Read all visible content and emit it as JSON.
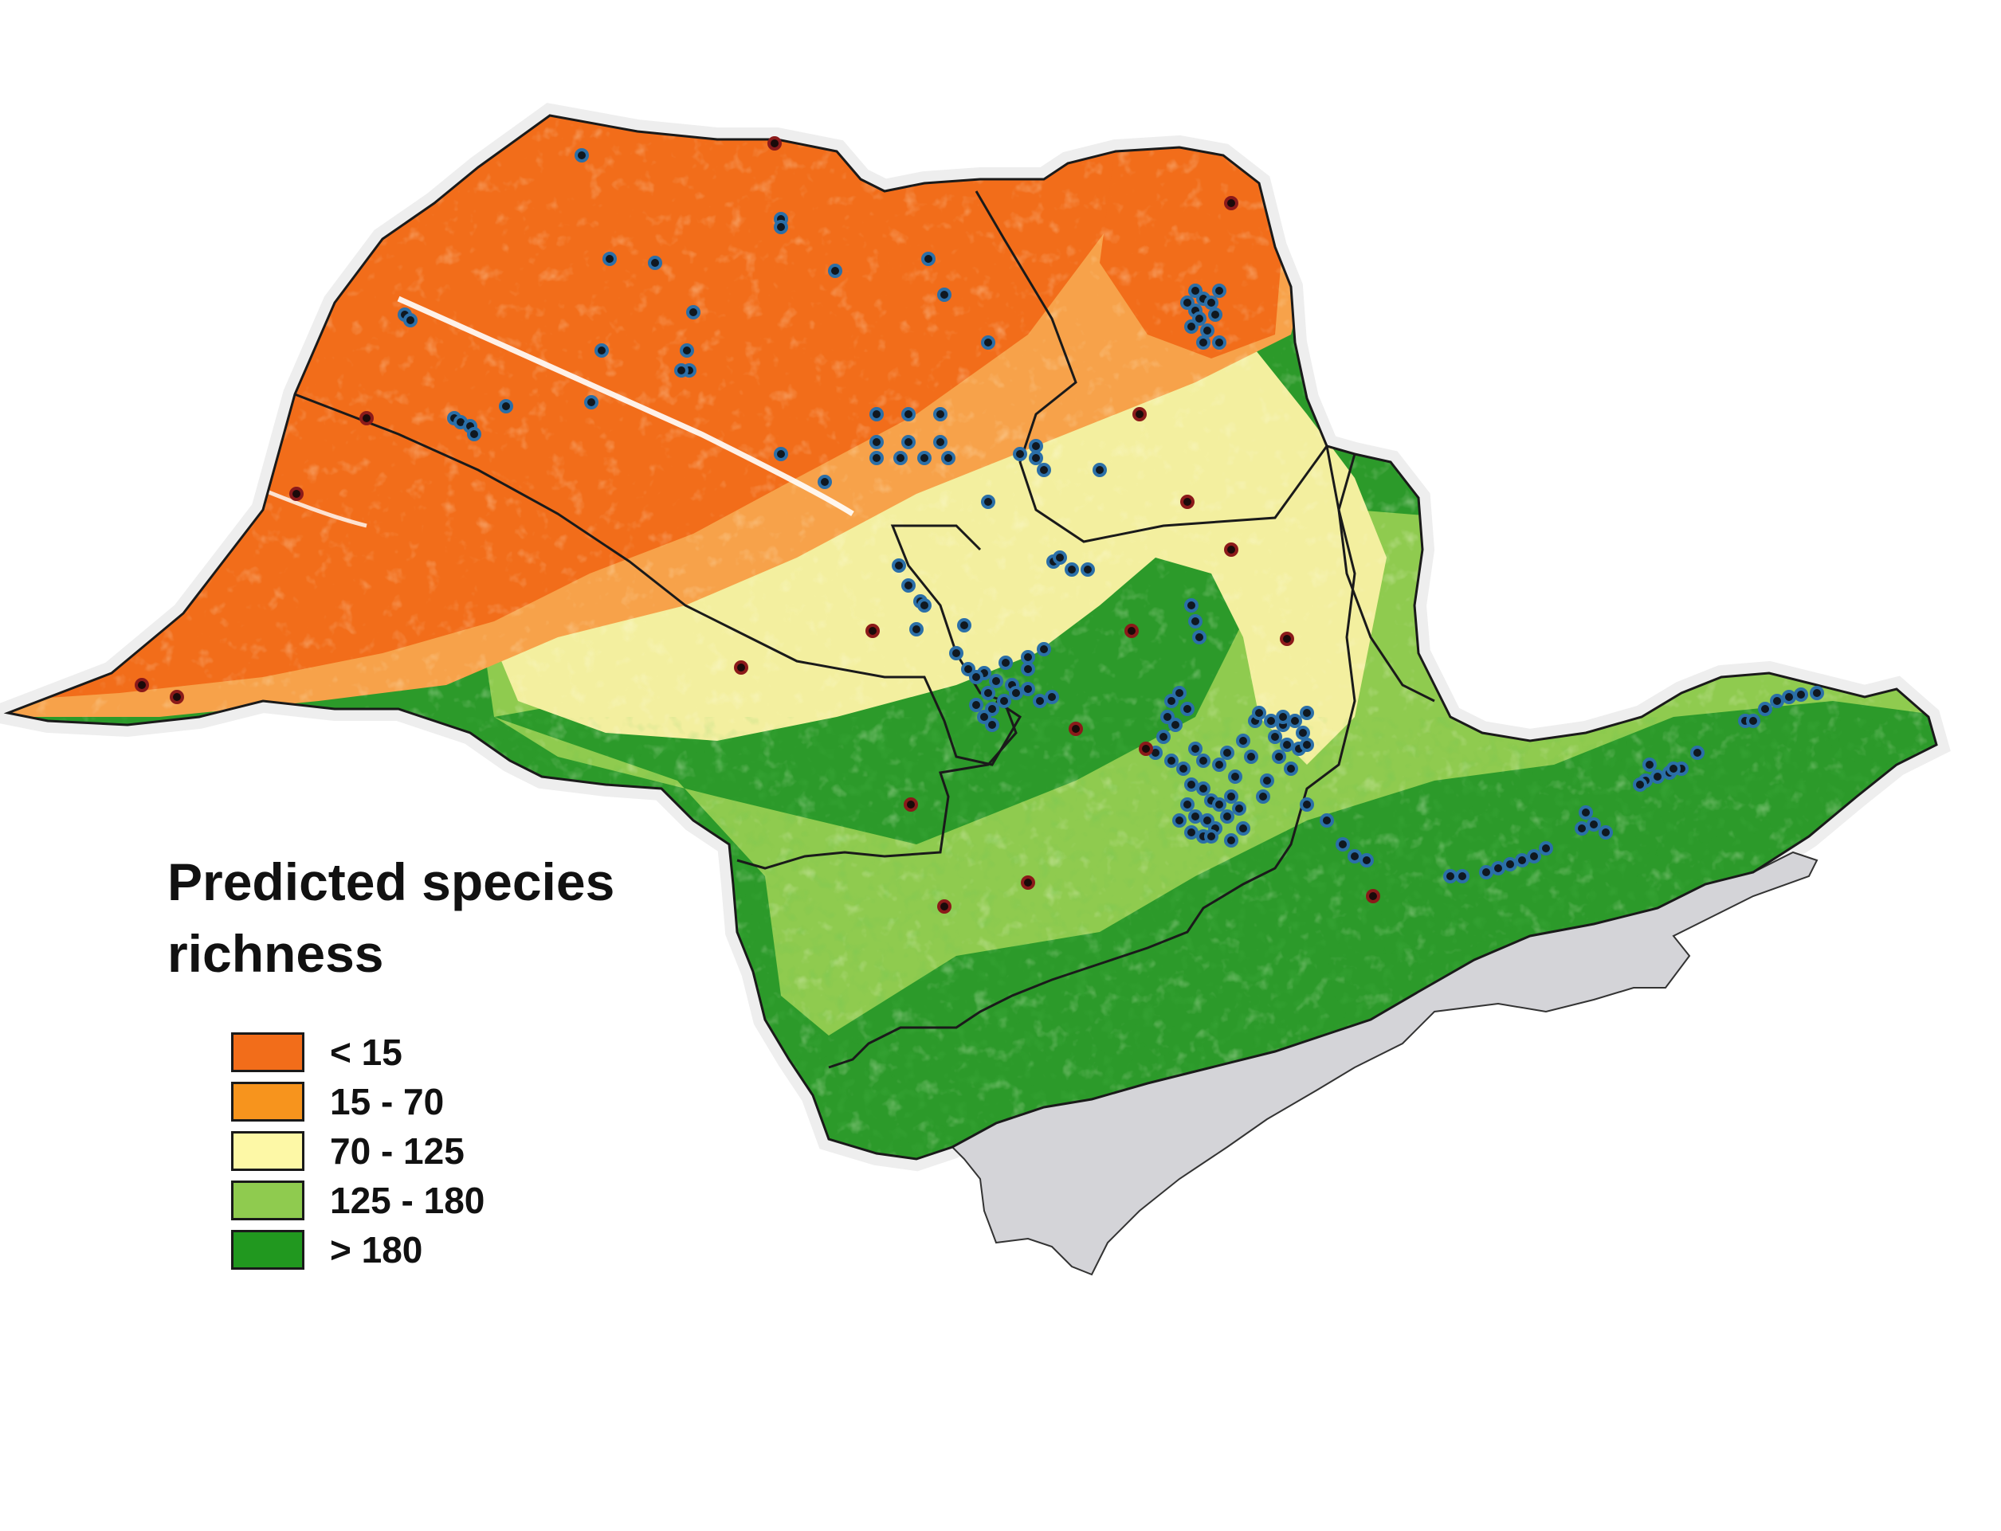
{
  "legend": {
    "title_line1": "Predicted species",
    "title_line2": "richness",
    "classes": [
      {
        "label": "< 15",
        "color": "#f26d1a"
      },
      {
        "label": "15 - 70",
        "color": "#f7941d"
      },
      {
        "label": "70 - 125",
        "color": "#fdf8a6"
      },
      {
        "label": "125 - 180",
        "color": "#8fcb4f"
      },
      {
        "label": "> 180",
        "color": "#21981f"
      }
    ]
  },
  "colors": {
    "background": "#ffffff",
    "ocean_area": "#d4d4d8",
    "boundary": "#1a1a1a",
    "sample_point_blue": "#2b6fa8",
    "sample_point_red": "#8b1a1a"
  }
}
